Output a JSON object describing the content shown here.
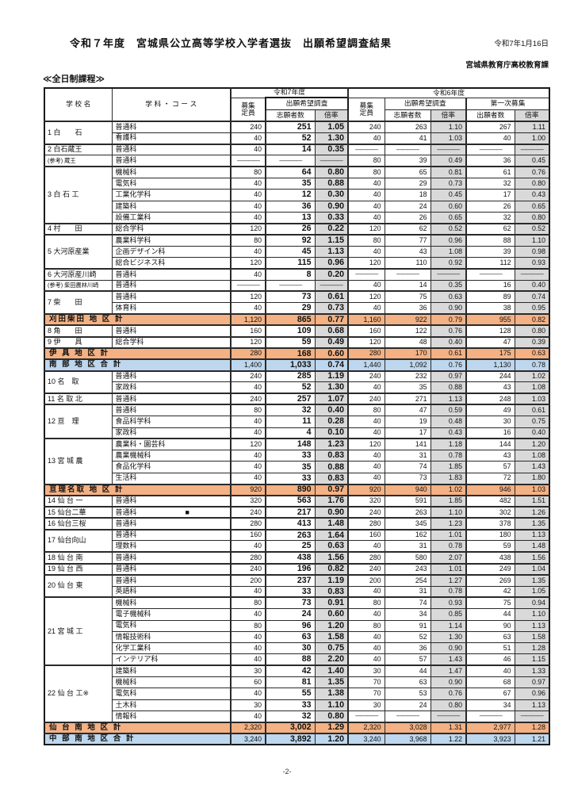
{
  "page": {
    "title": "令和７年度　宮城県公立高等学校入学者選抜　出願希望調査結果",
    "date": "令和7年1月16日",
    "department": "宮城県教育庁高校教育課",
    "section_label": "≪全日制課程≫",
    "page_number": "-2-"
  },
  "colors": {
    "district_row": "#F4B183",
    "total_row": "#BDD7EE",
    "rate_column": "#D9D9D9"
  },
  "table": {
    "header": {
      "school": "学 校 名",
      "course": "学 科 ・ コ ー ス",
      "r7_group": "令和7年度",
      "r6_group": "令和6年度",
      "recruit_l1": "募集",
      "recruit_l2": "定員",
      "survey": "出願希望調査",
      "first_recruit": "第一次募集",
      "applicants": "志願者数",
      "rate": "倍率",
      "first_applicants": "出願者数"
    },
    "rows": [
      {
        "type": "school",
        "gs": true,
        "school": "1 白　　石",
        "dept": "普通科",
        "values": [
          "240",
          "251",
          "1.05",
          "240",
          "263",
          "1.10",
          "267",
          "1.11"
        ]
      },
      {
        "type": "sub",
        "dept": "看護科",
        "values": [
          "40",
          "52",
          "1.30",
          "40",
          "41",
          "1.03",
          "40",
          "1.00"
        ]
      },
      {
        "type": "school",
        "gs": true,
        "school": "2 白石蔵王",
        "dept": "普通科",
        "values": [
          "40",
          "14",
          "0.35",
          "――――",
          "――――",
          "――――",
          "――――",
          "――――"
        ]
      },
      {
        "type": "ref",
        "school": "(参考) 蔵王",
        "dept": "普通科",
        "values": [
          "――――",
          "――――",
          "――――",
          "80",
          "39",
          "0.49",
          "36",
          "0.45"
        ]
      },
      {
        "type": "school",
        "gs": true,
        "school": "3 白 石 工",
        "dept": "機械科",
        "values": [
          "80",
          "64",
          "0.80",
          "80",
          "65",
          "0.81",
          "61",
          "0.76"
        ]
      },
      {
        "type": "sub",
        "dept": "電気科",
        "values": [
          "40",
          "35",
          "0.88",
          "40",
          "29",
          "0.73",
          "32",
          "0.80"
        ]
      },
      {
        "type": "sub",
        "dept": "工業化学科",
        "values": [
          "40",
          "12",
          "0.30",
          "40",
          "18",
          "0.45",
          "17",
          "0.43"
        ]
      },
      {
        "type": "sub",
        "dept": "建築科",
        "values": [
          "40",
          "36",
          "0.90",
          "40",
          "24",
          "0.60",
          "26",
          "0.65"
        ]
      },
      {
        "type": "sub",
        "dept": "設備工業科",
        "values": [
          "40",
          "13",
          "0.33",
          "40",
          "26",
          "0.65",
          "32",
          "0.80"
        ]
      },
      {
        "type": "school",
        "gs": true,
        "school": "4 村　　田",
        "dept": "総合学科",
        "values": [
          "120",
          "26",
          "0.22",
          "120",
          "62",
          "0.52",
          "62",
          "0.52"
        ]
      },
      {
        "type": "school",
        "gs": true,
        "school": "5 大河原産業",
        "dept": "農業科学科",
        "values": [
          "80",
          "92",
          "1.15",
          "80",
          "77",
          "0.96",
          "88",
          "1.10"
        ]
      },
      {
        "type": "sub",
        "dept": "企画デザイン科",
        "values": [
          "40",
          "45",
          "1.13",
          "40",
          "43",
          "1.08",
          "39",
          "0.98"
        ]
      },
      {
        "type": "sub",
        "dept": "総合ビジネス科",
        "values": [
          "120",
          "115",
          "0.96",
          "120",
          "110",
          "0.92",
          "112",
          "0.93"
        ]
      },
      {
        "type": "school",
        "gs": true,
        "school": "6 大河原産川崎",
        "dept": "普通科",
        "values": [
          "40",
          "8",
          "0.20",
          "――――",
          "――――",
          "――――",
          "――――",
          "――――"
        ]
      },
      {
        "type": "ref",
        "school": "(参考) 柴田農林川崎",
        "dept": "普通科",
        "values": [
          "――――",
          "――――",
          "――――",
          "40",
          "14",
          "0.35",
          "16",
          "0.40"
        ]
      },
      {
        "type": "school",
        "gs": true,
        "school": "7 柴　　田",
        "dept": "普通科",
        "values": [
          "120",
          "73",
          "0.61",
          "120",
          "75",
          "0.63",
          "89",
          "0.74"
        ]
      },
      {
        "type": "sub",
        "dept": "体育科",
        "values": [
          "40",
          "29",
          "0.73",
          "40",
          "36",
          "0.90",
          "38",
          "0.95"
        ]
      },
      {
        "type": "district",
        "gs": true,
        "label": "刈田柴田 地 区 計",
        "values": [
          "1,120",
          "865",
          "0.77",
          "1,160",
          "922",
          "0.79",
          "955",
          "0.82"
        ]
      },
      {
        "type": "school",
        "gs": true,
        "school": "8 角　　田",
        "dept": "普通科",
        "values": [
          "160",
          "109",
          "0.68",
          "160",
          "122",
          "0.76",
          "128",
          "0.80"
        ]
      },
      {
        "type": "school",
        "gs": true,
        "school": "9 伊　　具",
        "dept": "総合学科",
        "values": [
          "120",
          "59",
          "0.49",
          "120",
          "48",
          "0.40",
          "47",
          "0.39"
        ]
      },
      {
        "type": "district",
        "gs": true,
        "label": "伊 具 地 区 計",
        "values": [
          "280",
          "168",
          "0.60",
          "280",
          "170",
          "0.61",
          "175",
          "0.63"
        ]
      },
      {
        "type": "total",
        "gs": true,
        "label": "南 部 地 区 合 計",
        "values": [
          "1,400",
          "1,033",
          "0.74",
          "1,440",
          "1,092",
          "0.76",
          "1,130",
          "0.78"
        ]
      },
      {
        "type": "school",
        "gs": true,
        "school": "10 名　取",
        "dept": "普通科",
        "values": [
          "240",
          "285",
          "1.19",
          "240",
          "232",
          "0.97",
          "244",
          "1.02"
        ]
      },
      {
        "type": "sub",
        "dept": "家政科",
        "values": [
          "40",
          "52",
          "1.30",
          "40",
          "35",
          "0.88",
          "43",
          "1.08"
        ]
      },
      {
        "type": "school",
        "gs": true,
        "school": "11 名 取 北",
        "dept": "普通科",
        "values": [
          "240",
          "257",
          "1.07",
          "240",
          "271",
          "1.13",
          "248",
          "1.03"
        ]
      },
      {
        "type": "school",
        "gs": true,
        "school": "12 亘　理",
        "dept": "普通科",
        "values": [
          "80",
          "32",
          "0.40",
          "80",
          "47",
          "0.59",
          "49",
          "0.61"
        ]
      },
      {
        "type": "sub",
        "dept": "食品科学科",
        "values": [
          "40",
          "11",
          "0.28",
          "40",
          "19",
          "0.48",
          "30",
          "0.75"
        ]
      },
      {
        "type": "sub",
        "dept": "家政科",
        "values": [
          "40",
          "4",
          "0.10",
          "40",
          "17",
          "0.43",
          "16",
          "0.40"
        ]
      },
      {
        "type": "school",
        "gs": true,
        "school": "13 宮 城 農",
        "dept": "農業科・園芸科",
        "values": [
          "120",
          "148",
          "1.23",
          "120",
          "141",
          "1.18",
          "144",
          "1.20"
        ]
      },
      {
        "type": "sub",
        "dept": "農業機械科",
        "values": [
          "40",
          "33",
          "0.83",
          "40",
          "31",
          "0.78",
          "43",
          "1.08"
        ]
      },
      {
        "type": "sub",
        "dept": "食品化学科",
        "values": [
          "40",
          "35",
          "0.88",
          "40",
          "74",
          "1.85",
          "57",
          "1.43"
        ]
      },
      {
        "type": "sub",
        "dept": "生活科",
        "values": [
          "40",
          "33",
          "0.83",
          "40",
          "73",
          "1.83",
          "72",
          "1.80"
        ]
      },
      {
        "type": "district",
        "gs": true,
        "label": "亘理名取 地 区 計",
        "values": [
          "920",
          "890",
          "0.97",
          "920",
          "940",
          "1.02",
          "946",
          "1.03"
        ]
      },
      {
        "type": "school",
        "gs": true,
        "school": "14 仙 台 一",
        "dept": "普通科",
        "values": [
          "320",
          "563",
          "1.76",
          "320",
          "591",
          "1.85",
          "482",
          "1.51"
        ]
      },
      {
        "type": "school",
        "gs": true,
        "school": "15 仙台二華",
        "dept": "普通科",
        "mark": "■",
        "values": [
          "240",
          "217",
          "0.90",
          "240",
          "263",
          "1.10",
          "302",
          "1.26"
        ]
      },
      {
        "type": "school",
        "gs": true,
        "school": "16 仙台三桜",
        "dept": "普通科",
        "values": [
          "280",
          "413",
          "1.48",
          "280",
          "345",
          "1.23",
          "378",
          "1.35"
        ]
      },
      {
        "type": "school",
        "gs": true,
        "school": "17 仙台向山",
        "dept": "普通科",
        "values": [
          "160",
          "263",
          "1.64",
          "160",
          "162",
          "1.01",
          "180",
          "1.13"
        ]
      },
      {
        "type": "sub",
        "dept": "理数科",
        "values": [
          "40",
          "25",
          "0.63",
          "40",
          "31",
          "0.78",
          "59",
          "1.48"
        ]
      },
      {
        "type": "school",
        "gs": true,
        "school": "18 仙 台 南",
        "dept": "普通科",
        "values": [
          "280",
          "438",
          "1.56",
          "280",
          "580",
          "2.07",
          "438",
          "1.56"
        ]
      },
      {
        "type": "school",
        "gs": true,
        "school": "19 仙 台 西",
        "dept": "普通科",
        "values": [
          "240",
          "196",
          "0.82",
          "240",
          "243",
          "1.01",
          "249",
          "1.04"
        ]
      },
      {
        "type": "school",
        "gs": true,
        "school": "20 仙 台 東",
        "dept": "普通科",
        "values": [
          "200",
          "237",
          "1.19",
          "200",
          "254",
          "1.27",
          "269",
          "1.35"
        ]
      },
      {
        "type": "sub",
        "dept": "英語科",
        "values": [
          "40",
          "33",
          "0.83",
          "40",
          "31",
          "0.78",
          "42",
          "1.05"
        ]
      },
      {
        "type": "school",
        "gs": true,
        "school": "21 宮 城 工",
        "dept": "機械科",
        "values": [
          "80",
          "73",
          "0.91",
          "80",
          "74",
          "0.93",
          "75",
          "0.94"
        ]
      },
      {
        "type": "sub",
        "dept": "電子機械科",
        "values": [
          "40",
          "24",
          "0.60",
          "40",
          "34",
          "0.85",
          "44",
          "1.10"
        ]
      },
      {
        "type": "sub",
        "dept": "電気科",
        "values": [
          "80",
          "96",
          "1.20",
          "80",
          "91",
          "1.14",
          "90",
          "1.13"
        ]
      },
      {
        "type": "sub",
        "dept": "情報技術科",
        "values": [
          "40",
          "63",
          "1.58",
          "40",
          "52",
          "1.30",
          "63",
          "1.58"
        ]
      },
      {
        "type": "sub",
        "dept": "化学工業科",
        "values": [
          "40",
          "30",
          "0.75",
          "40",
          "36",
          "0.90",
          "51",
          "1.28"
        ]
      },
      {
        "type": "sub",
        "dept": "インテリア科",
        "values": [
          "40",
          "88",
          "2.20",
          "40",
          "57",
          "1.43",
          "46",
          "1.15"
        ]
      },
      {
        "type": "school",
        "gs": true,
        "school": "22 仙 台 工※",
        "dept": "建築科",
        "values": [
          "30",
          "42",
          "1.40",
          "30",
          "44",
          "1.47",
          "40",
          "1.33"
        ]
      },
      {
        "type": "sub",
        "dept": "機械科",
        "values": [
          "60",
          "81",
          "1.35",
          "70",
          "63",
          "0.90",
          "68",
          "0.97"
        ]
      },
      {
        "type": "sub",
        "dept": "電気科",
        "values": [
          "40",
          "55",
          "1.38",
          "70",
          "53",
          "0.76",
          "67",
          "0.96"
        ]
      },
      {
        "type": "sub",
        "dept": "土木科",
        "values": [
          "30",
          "33",
          "1.10",
          "30",
          "24",
          "0.80",
          "34",
          "1.13"
        ]
      },
      {
        "type": "sub",
        "dept": "情報科",
        "values": [
          "40",
          "32",
          "0.80",
          "――――",
          "――――",
          "――――",
          "――――",
          "――――"
        ]
      },
      {
        "type": "district",
        "gs": true,
        "label": "仙 台 南 地 区 計",
        "values": [
          "2,320",
          "3,002",
          "1.29",
          "2,320",
          "3,028",
          "1.31",
          "2,977",
          "1.28"
        ]
      },
      {
        "type": "total",
        "gs": true,
        "label": "中 部 南 地 区 合 計",
        "values": [
          "3,240",
          "3,892",
          "1.20",
          "3,240",
          "3,968",
          "1.22",
          "3,923",
          "1.21"
        ]
      }
    ]
  }
}
